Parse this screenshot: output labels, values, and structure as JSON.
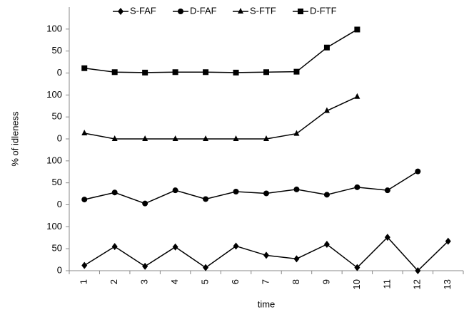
{
  "chart_data": {
    "type": "line",
    "layout": "stacked-panels",
    "xlabel": "time",
    "ylabel": "% of idleness",
    "categories": [
      "1",
      "2",
      "3",
      "4",
      "5",
      "6",
      "7",
      "8",
      "9",
      "10",
      "11",
      "12",
      "13"
    ],
    "ylim": [
      0,
      150
    ],
    "yticks": [
      0,
      50,
      100
    ],
    "series": [
      {
        "name": "S-FAF",
        "marker": "diamond",
        "color": "#000000",
        "values": [
          12,
          55,
          10,
          54,
          7,
          56,
          35,
          27,
          60,
          7,
          76,
          0,
          67
        ]
      },
      {
        "name": "D-FAF",
        "marker": "circle",
        "color": "#000000",
        "values": [
          12,
          28,
          3,
          33,
          13,
          30,
          26,
          35,
          23,
          40,
          33,
          76,
          null
        ]
      },
      {
        "name": "S-FTF",
        "marker": "triangle",
        "color": "#000000",
        "values": [
          13,
          0,
          0,
          0,
          0,
          0,
          0,
          12,
          64,
          96,
          null,
          null,
          null
        ]
      },
      {
        "name": "D-FTF",
        "marker": "square",
        "color": "#000000",
        "values": [
          11,
          2,
          1,
          2,
          2,
          1,
          2,
          3,
          58,
          99,
          null,
          null,
          null
        ]
      }
    ]
  }
}
